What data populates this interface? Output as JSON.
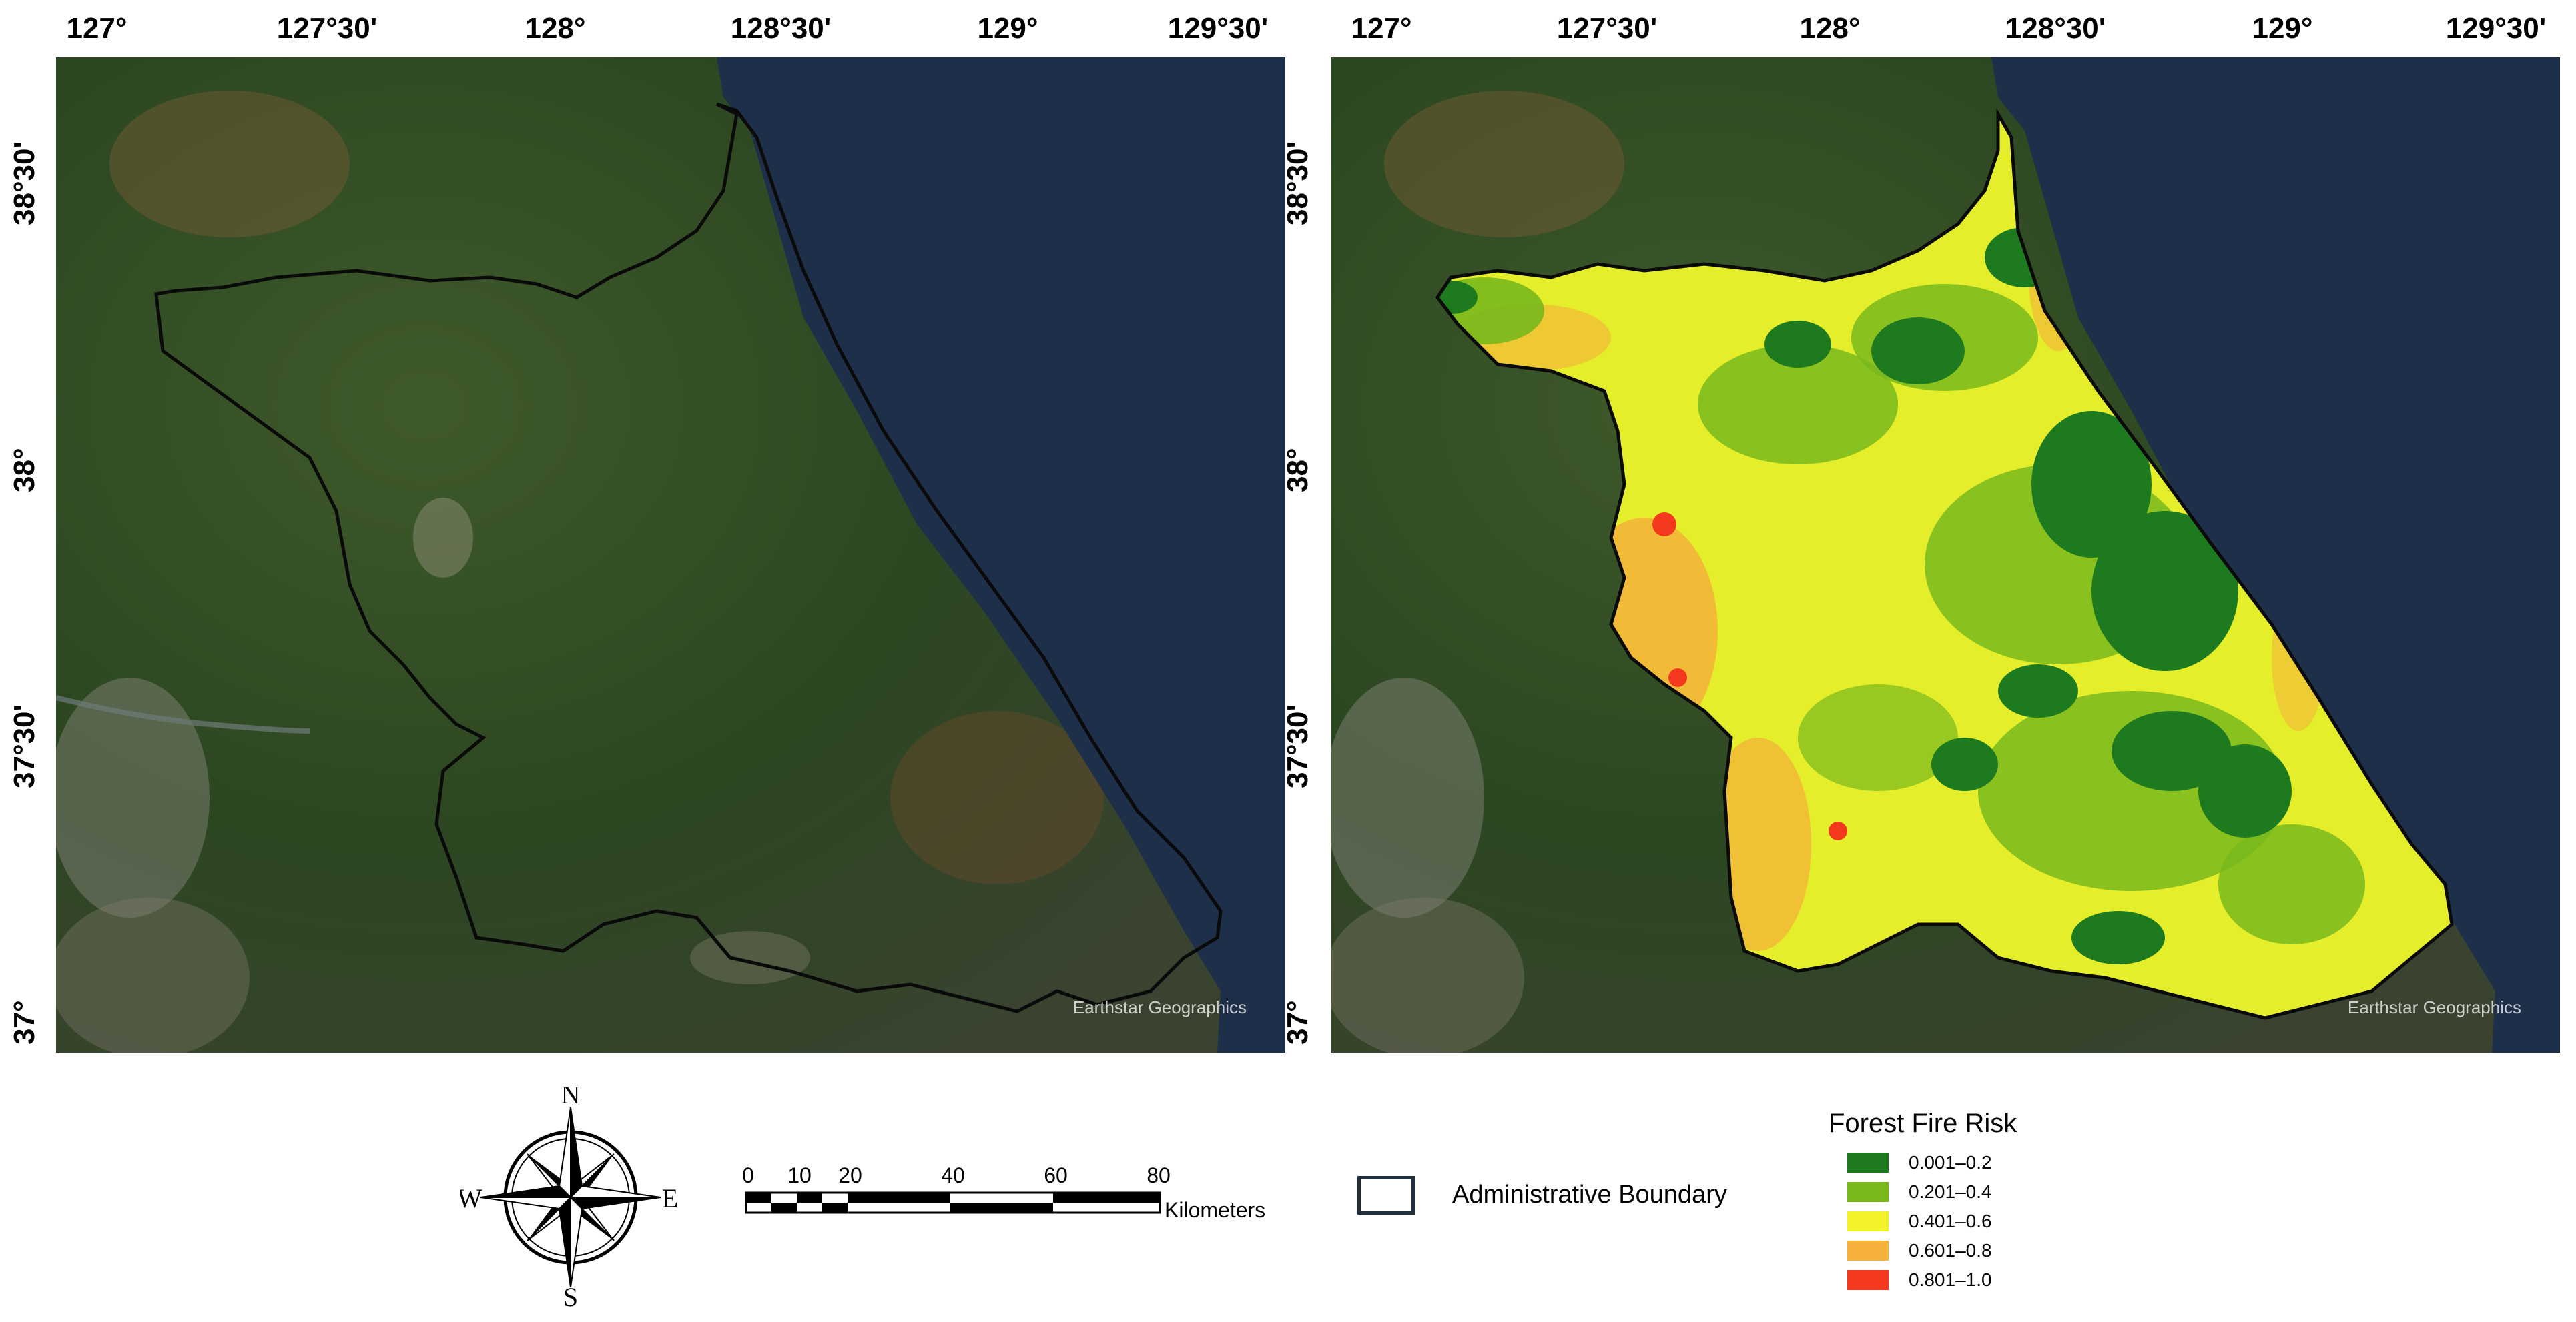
{
  "map": {
    "longitude_labels": [
      "127°",
      "127°30'",
      "128°",
      "128°30'",
      "129°",
      "129°30'"
    ],
    "latitude_labels": [
      "38°30'",
      "38°",
      "37°30'",
      "37°"
    ],
    "attribution": "Earthstar Geographics"
  },
  "colors": {
    "sea": "#1e3049",
    "land": "#2f4a23",
    "boundary": "#0a0a0a",
    "risk_1": "#1e7a1e",
    "risk_2": "#79b81c",
    "risk_3": "#f2f22a",
    "risk_4": "#f5b13a",
    "risk_5": "#f5391e"
  },
  "compass": {
    "north": "N",
    "south": "S",
    "east": "E",
    "west": "W"
  },
  "scale_bar": {
    "ticks": [
      "0",
      "10",
      "20",
      "40",
      "60",
      "80"
    ],
    "unit": "Kilometers"
  },
  "boundary_legend": {
    "label": "Administrative Boundary"
  },
  "risk_legend": {
    "title": "Forest Fire Risk",
    "classes": [
      "0.001–0.2",
      "0.201–0.4",
      "0.401–0.6",
      "0.601–0.8",
      "0.801–1.0"
    ]
  }
}
